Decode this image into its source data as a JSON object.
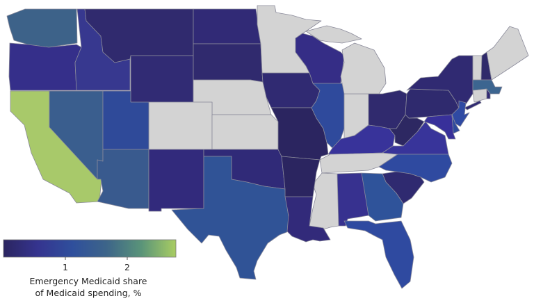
{
  "map_data": {
    "type": "choropleth",
    "region": "United States (contiguous)",
    "no_data_color": "#d3d3d3",
    "regions": [
      {
        "id": "WA",
        "value": 1.6,
        "color": "#3d6289"
      },
      {
        "id": "OR",
        "value": 0.5,
        "color": "#352f8a"
      },
      {
        "id": "CA",
        "value": 2.6,
        "color": "#a8c96a"
      },
      {
        "id": "ID",
        "value": 0.6,
        "color": "#37388f"
      },
      {
        "id": "NV",
        "value": 1.5,
        "color": "#3a5e8e"
      },
      {
        "id": "UT",
        "value": 1.2,
        "color": "#2f4a99"
      },
      {
        "id": "AZ",
        "value": 1.5,
        "color": "#395a8e"
      },
      {
        "id": "MT",
        "value": 0.3,
        "color": "#302a6e"
      },
      {
        "id": "WY",
        "value": 0.3,
        "color": "#312b74"
      },
      {
        "id": "CO",
        "value": null,
        "color": "#d3d3d3"
      },
      {
        "id": "NM",
        "value": 0.4,
        "color": "#322a7c"
      },
      {
        "id": "ND",
        "value": 0.3,
        "color": "#312a76"
      },
      {
        "id": "SD",
        "value": 0.3,
        "color": "#302a6e"
      },
      {
        "id": "NE",
        "value": null,
        "color": "#d3d3d3"
      },
      {
        "id": "KS",
        "value": null,
        "color": "#d3d3d3"
      },
      {
        "id": "OK",
        "value": 0.3,
        "color": "#302a78"
      },
      {
        "id": "TX",
        "value": 1.2,
        "color": "#305396"
      },
      {
        "id": "MN",
        "value": null,
        "color": "#d3d3d3"
      },
      {
        "id": "IA",
        "value": 0.3,
        "color": "#302a72"
      },
      {
        "id": "MO",
        "value": 0.1,
        "color": "#2b2560"
      },
      {
        "id": "AR",
        "value": 0.1,
        "color": "#2b2560"
      },
      {
        "id": "LA",
        "value": 0.4,
        "color": "#322a7a"
      },
      {
        "id": "WI",
        "value": 0.5,
        "color": "#352d86"
      },
      {
        "id": "IL",
        "value": 1.1,
        "color": "#2f4a9c"
      },
      {
        "id": "MI",
        "value": null,
        "color": "#d3d3d3"
      },
      {
        "id": "IN",
        "value": null,
        "color": "#d3d3d3"
      },
      {
        "id": "OH",
        "value": 0.3,
        "color": "#302a6e"
      },
      {
        "id": "KY",
        "value": 0.6,
        "color": "#38339a"
      },
      {
        "id": "TN",
        "value": null,
        "color": "#d3d3d3"
      },
      {
        "id": "MS",
        "value": null,
        "color": "#d3d3d3"
      },
      {
        "id": "AL",
        "value": 0.6,
        "color": "#37318f"
      },
      {
        "id": "GA",
        "value": 1.2,
        "color": "#2f539a"
      },
      {
        "id": "FL",
        "value": 1.0,
        "color": "#2f4aa0"
      },
      {
        "id": "SC",
        "value": 0.3,
        "color": "#2f2a70"
      },
      {
        "id": "NC",
        "value": 1.0,
        "color": "#2f4aa0"
      },
      {
        "id": "VA",
        "value": 0.6,
        "color": "#38349a"
      },
      {
        "id": "WV",
        "value": 0.1,
        "color": "#2d2862"
      },
      {
        "id": "MD",
        "value": 0.6,
        "color": "#38309a"
      },
      {
        "id": "DE",
        "value": 1.0,
        "color": "#2f4a9c"
      },
      {
        "id": "PA",
        "value": 0.3,
        "color": "#2f2a6e"
      },
      {
        "id": "NJ",
        "value": 1.0,
        "color": "#2f4aa3"
      },
      {
        "id": "NY",
        "value": 0.3,
        "color": "#302a72"
      },
      {
        "id": "CT",
        "value": null,
        "color": "#d3d3d3"
      },
      {
        "id": "RI",
        "value": 0.3,
        "color": "#302a72"
      },
      {
        "id": "MA",
        "value": 1.6,
        "color": "#3c6590"
      },
      {
        "id": "VT",
        "value": null,
        "color": "#d3d3d3"
      },
      {
        "id": "NH",
        "value": 0.2,
        "color": "#2f2a6a"
      },
      {
        "id": "ME",
        "value": null,
        "color": "#d3d3d3"
      }
    ]
  },
  "legend": {
    "title_line1": "Emergency Medicaid share",
    "title_line2": "of Medicaid spending, %",
    "range": [
      0,
      2.8
    ],
    "ticks": [
      "1",
      "2"
    ],
    "colors": [
      "#2b2560",
      "#35348f",
      "#2f4f9c",
      "#3d6589",
      "#5a9479",
      "#a9cd62"
    ]
  }
}
